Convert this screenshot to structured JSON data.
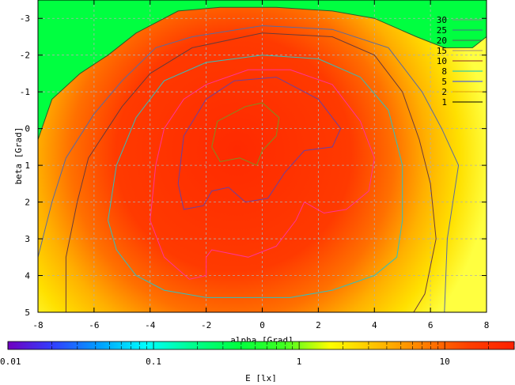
{
  "chart_data": {
    "type": "heatmap",
    "title": "",
    "xlabel": "alpha [Grad]",
    "ylabel": "beta [Grad]",
    "xlim": [
      -8,
      8
    ],
    "ylim": [
      5,
      -3.5
    ],
    "y_axis_inverted": true,
    "grid": true,
    "x_ticks": [
      "-8",
      "-6",
      "-4",
      "-2",
      "0",
      "2",
      "4",
      "6",
      "8"
    ],
    "y_ticks": [
      "-3",
      "-2",
      "-1",
      "0",
      "1",
      "2",
      "3",
      "4",
      "5"
    ],
    "legend_placement": "top-right",
    "contour_legend": [
      {
        "level": "30",
        "color": "#8a8a8a"
      },
      {
        "level": "25",
        "color": "#4a6a8a"
      },
      {
        "level": "20",
        "color": "#5a5a5a"
      },
      {
        "level": "15",
        "color": "#a08a70"
      },
      {
        "level": "10",
        "color": "#8b2a2a"
      },
      {
        "level": "8",
        "color": "#00c0c0"
      },
      {
        "level": "5",
        "color": "#2040ff"
      },
      {
        "level": "2",
        "color": "#e0a000"
      },
      {
        "level": "1",
        "color": "#000000"
      }
    ],
    "contours": [
      {
        "level": 30,
        "color": "#7f8f20",
        "points": [
          [
            -1.8,
            0.5
          ],
          [
            -1.6,
            -0.2
          ],
          [
            -0.6,
            -0.6
          ],
          [
            0,
            -0.7
          ],
          [
            0.6,
            -0.3
          ],
          [
            0.5,
            0.2
          ],
          [
            0,
            0.6
          ],
          [
            -0.2,
            1.0
          ],
          [
            -0.8,
            0.8
          ],
          [
            -1.5,
            0.9
          ],
          [
            -1.8,
            0.5
          ]
        ]
      },
      {
        "level": 20,
        "color": "#6a40a0",
        "points": [
          [
            -3.0,
            1.5
          ],
          [
            -2.8,
            0.2
          ],
          [
            -2.0,
            -0.8
          ],
          [
            -1.0,
            -1.3
          ],
          [
            0.5,
            -1.4
          ],
          [
            2.0,
            -0.8
          ],
          [
            2.8,
            0.0
          ],
          [
            2.5,
            0.5
          ],
          [
            1.5,
            0.6
          ],
          [
            0.8,
            1.2
          ],
          [
            0.2,
            1.9
          ],
          [
            -0.6,
            2.0
          ],
          [
            -1.2,
            1.6
          ],
          [
            -1.8,
            1.7
          ],
          [
            -2.1,
            2.1
          ],
          [
            -2.8,
            2.2
          ],
          [
            -3.0,
            1.5
          ]
        ]
      },
      {
        "level": 15,
        "color": "#ff3399",
        "points": [
          [
            -4.0,
            2.5
          ],
          [
            -3.8,
            1.0
          ],
          [
            -3.5,
            0.0
          ],
          [
            -2.8,
            -0.8
          ],
          [
            -2.0,
            -1.2
          ],
          [
            -0.5,
            -1.6
          ],
          [
            1.0,
            -1.6
          ],
          [
            2.5,
            -1.2
          ],
          [
            3.5,
            -0.2
          ],
          [
            4.0,
            0.8
          ],
          [
            3.8,
            1.7
          ],
          [
            3.0,
            2.2
          ],
          [
            2.2,
            2.3
          ],
          [
            1.5,
            2.0
          ],
          [
            1.2,
            2.5
          ],
          [
            0.5,
            3.2
          ],
          [
            -0.5,
            3.5
          ],
          [
            -1.8,
            3.3
          ],
          [
            -2.0,
            3.5
          ],
          [
            -2.0,
            4.0
          ],
          [
            -2.6,
            4.1
          ],
          [
            -3.5,
            3.5
          ],
          [
            -4.0,
            2.5
          ]
        ]
      },
      {
        "level": 10,
        "color": "#30c0c0",
        "points": [
          [
            -5.5,
            2.5
          ],
          [
            -5.2,
            1.0
          ],
          [
            -4.5,
            -0.3
          ],
          [
            -3.5,
            -1.3
          ],
          [
            -2.0,
            -1.8
          ],
          [
            0.0,
            -2.0
          ],
          [
            2.0,
            -1.9
          ],
          [
            3.5,
            -1.4
          ],
          [
            4.5,
            -0.5
          ],
          [
            5.0,
            1.0
          ],
          [
            5.0,
            2.5
          ],
          [
            4.8,
            3.5
          ],
          [
            4.0,
            4.0
          ],
          [
            2.5,
            4.4
          ],
          [
            1.0,
            4.6
          ],
          [
            -0.5,
            4.6
          ],
          [
            -2.0,
            4.6
          ],
          [
            -3.5,
            4.4
          ],
          [
            -4.5,
            4.0
          ],
          [
            -5.2,
            3.3
          ],
          [
            -5.5,
            2.5
          ]
        ]
      },
      {
        "level": 5,
        "color": "#6a3a3a",
        "points": [
          [
            -7.0,
            5.0
          ],
          [
            -7.0,
            3.5
          ],
          [
            -6.6,
            2.0
          ],
          [
            -6.2,
            0.8
          ],
          [
            -5.0,
            -0.6
          ],
          [
            -4.0,
            -1.5
          ],
          [
            -2.5,
            -2.2
          ],
          [
            0.0,
            -2.6
          ],
          [
            2.5,
            -2.5
          ],
          [
            4.0,
            -2.0
          ],
          [
            5.0,
            -1.0
          ],
          [
            5.6,
            0.3
          ],
          [
            6.0,
            1.5
          ],
          [
            6.2,
            3.0
          ],
          [
            5.8,
            4.5
          ],
          [
            5.4,
            5.0
          ]
        ]
      },
      {
        "level": 2,
        "color": "#5a6aa0",
        "points": [
          [
            -8.0,
            3.5
          ],
          [
            -7.5,
            2.0
          ],
          [
            -7.0,
            0.8
          ],
          [
            -6.0,
            -0.4
          ],
          [
            -5.0,
            -1.3
          ],
          [
            -3.8,
            -2.2
          ],
          [
            -2.5,
            -2.5
          ],
          [
            0.0,
            -2.8
          ],
          [
            2.5,
            -2.7
          ],
          [
            4.5,
            -2.2
          ],
          [
            5.7,
            -1.0
          ],
          [
            6.4,
            0.0
          ],
          [
            7.0,
            1.0
          ],
          [
            6.6,
            3.0
          ],
          [
            6.5,
            5.0
          ]
        ]
      },
      {
        "level": 1,
        "color": "#2a5a2a",
        "points": [
          [
            -8.0,
            0.3
          ],
          [
            -7.5,
            -0.8
          ],
          [
            -6.5,
            -1.5
          ],
          [
            -5.5,
            -2.0
          ],
          [
            -4.5,
            -2.6
          ],
          [
            -3.0,
            -3.2
          ],
          [
            -1.5,
            -3.3
          ],
          [
            0.5,
            -3.3
          ],
          [
            2.5,
            -3.2
          ],
          [
            4.0,
            -3.0
          ],
          [
            5.5,
            -2.5
          ],
          [
            6.5,
            -2.2
          ],
          [
            7.5,
            -2.2
          ],
          [
            8.0,
            -2.5
          ]
        ]
      }
    ],
    "colorbar": {
      "label": "E [lx]",
      "scale": "log",
      "range": [
        0.01,
        30
      ],
      "ticks": [
        "0.01",
        "0.1",
        "1",
        "10"
      ],
      "tick_values": [
        0.01,
        0.1,
        1,
        10
      ],
      "colors": [
        "#7000c0",
        "#3040ff",
        "#00a0ff",
        "#00ffff",
        "#00ff90",
        "#00ff40",
        "#40ff20",
        "#ffff00",
        "#ffc000",
        "#ff8000",
        "#ff4000",
        "#ff2000"
      ]
    }
  }
}
